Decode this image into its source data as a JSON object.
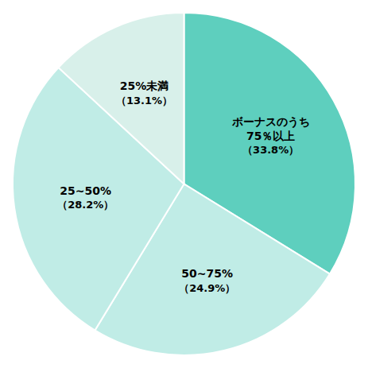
{
  "chart_data": {
    "type": "pie",
    "categories": [
      "ボーナスのうち\n75％以上",
      "50~75%",
      "25~50%",
      "25%未満"
    ],
    "values": [
      33.8,
      24.9,
      28.2,
      13.1
    ],
    "value_labels": [
      "（33.8%）",
      "（24.9%）",
      "（28.2%）",
      "（13.1%）"
    ],
    "colors": [
      "#5ecfbe",
      "#c0ece6",
      "#c0ece6",
      "#d8f0ea"
    ],
    "data_labels": true
  }
}
